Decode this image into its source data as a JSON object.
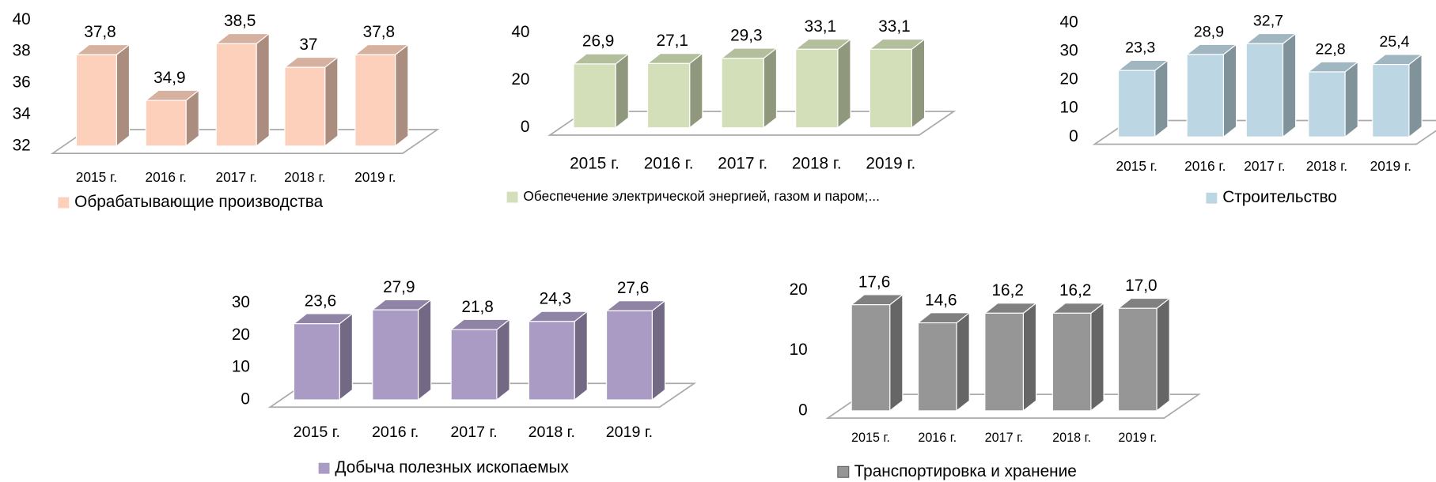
{
  "chart_data": [
    {
      "type": "bar",
      "categories": [
        "2015 г.",
        "2016 г.",
        "2017 г.",
        "2018 г.",
        "2019 г."
      ],
      "series": [
        {
          "name": "Обрабатывающие производства",
          "color": "#fcd0bb",
          "values": [
            37.8,
            34.9,
            38.5,
            37,
            37.8
          ],
          "value_labels": [
            "37,8",
            "34,9",
            "38,5",
            "37",
            "37,8"
          ]
        }
      ],
      "ylim": [
        32,
        40
      ],
      "yticks": [
        32,
        34,
        36,
        38,
        40
      ]
    },
    {
      "type": "bar",
      "categories": [
        "2015 г.",
        "2016 г.",
        "2017 г.",
        "2018 г.",
        "2019 г."
      ],
      "series": [
        {
          "name": "Обеспечение электрической энергией, газом и паром;...",
          "color": "#d3dfb8",
          "values": [
            26.9,
            27.1,
            29.3,
            33.1,
            33.1
          ],
          "value_labels": [
            "26,9",
            "27,1",
            "29,3",
            "33,1",
            "33,1"
          ]
        }
      ],
      "ylim": [
        0,
        40
      ],
      "yticks": [
        0,
        20,
        40
      ]
    },
    {
      "type": "bar",
      "categories": [
        "2015 г.",
        "2016 г.",
        "2017 г.",
        "2018 г.",
        "2019 г."
      ],
      "series": [
        {
          "name": "Строительство",
          "color": "#bcd6e3",
          "values": [
            23.3,
            28.9,
            32.7,
            22.8,
            25.4
          ],
          "value_labels": [
            "23,3",
            "28,9",
            "32,7",
            "22,8",
            "25,4"
          ]
        }
      ],
      "ylim": [
        0,
        40
      ],
      "yticks": [
        0,
        10,
        20,
        30,
        40
      ]
    },
    {
      "type": "bar",
      "categories": [
        "2015 г.",
        "2016 г.",
        "2017 г.",
        "2018 г.",
        "2019 г."
      ],
      "series": [
        {
          "name": "Добыча полезных ископаемых",
          "color": "#a99bc3",
          "values": [
            23.6,
            27.9,
            21.8,
            24.3,
            27.6
          ],
          "value_labels": [
            "23,6",
            "27,9",
            "21,8",
            "24,3",
            "27,6"
          ]
        }
      ],
      "ylim": [
        0,
        30
      ],
      "yticks": [
        0,
        10,
        20,
        30
      ]
    },
    {
      "type": "bar",
      "categories": [
        "2015 г.",
        "2016 г.",
        "2017 г.",
        "2018 г.",
        "2019 г."
      ],
      "series": [
        {
          "name": "Транспортировка и хранение",
          "color": "#969696",
          "values": [
            17.6,
            14.6,
            16.2,
            16.2,
            17.0
          ],
          "value_labels": [
            "17,6",
            "14,6",
            "16,2",
            "16,2",
            "17,0"
          ]
        }
      ],
      "ylim": [
        0,
        20
      ],
      "yticks": [
        0,
        10,
        20
      ]
    }
  ]
}
